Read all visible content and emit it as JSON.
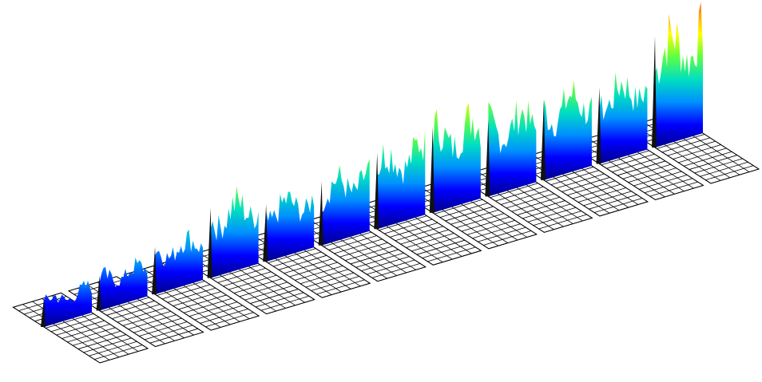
{
  "chart_data": {
    "type": "waterfall3d",
    "values": [
      45,
      55,
      75,
      110,
      90,
      100,
      120,
      135,
      120,
      125,
      120,
      175
    ],
    "ylim": [
      0,
      200
    ],
    "colormap": [
      "#00008b",
      "#0000ff",
      "#0090ff",
      "#00e0c0",
      "#60ff40",
      "#ffff00",
      "#ff9000",
      "#ff0000"
    ]
  }
}
